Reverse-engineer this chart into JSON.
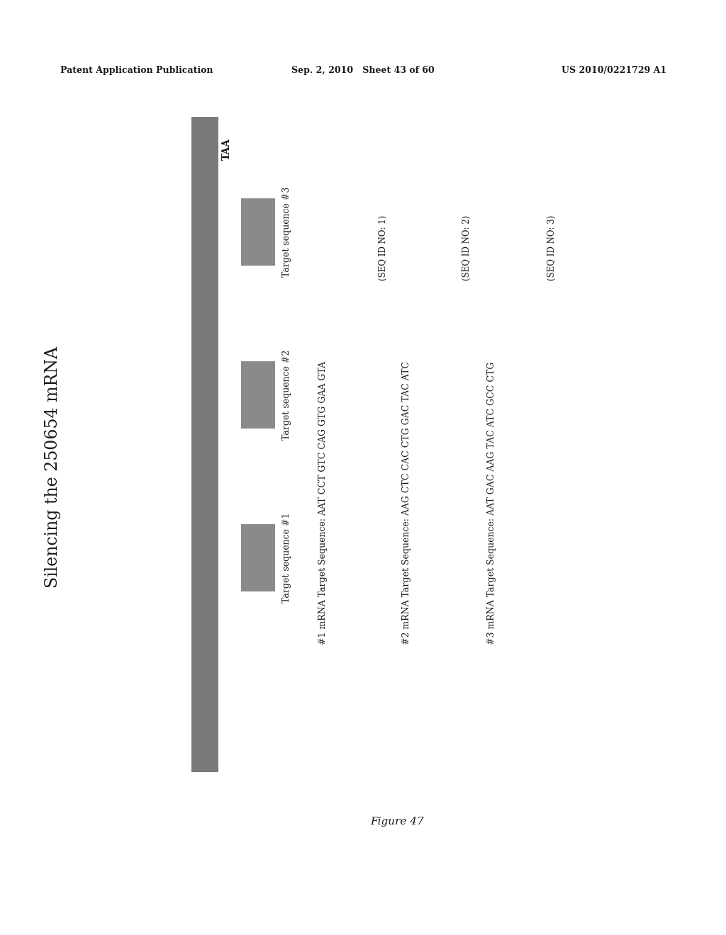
{
  "bg_color": "#ffffff",
  "header_left": "Patent Application Publication",
  "header_mid": "Sep. 2, 2010   Sheet 43 of 60",
  "header_right": "US 2010/0221729 A1",
  "title_rotated": "Silencing the 250654 mRNA",
  "taa_label": "TAA",
  "mrna_bar_color": "#7a7a7a",
  "target_bar_color": "#8a8a8a",
  "seq1_main": "#1 mRNA Target Sequence: AAT CCT GTC CAG GTG GAA GTA",
  "seq1_id": "(SEQ ID NO: 1)",
  "seq2_main": "#2 mRNA Target Sequence: AAG CTC CAC CTG GAC TAC ATC",
  "seq2_id": "(SEQ ID NO: 2)",
  "seq3_main": "#3 mRNA Target Sequence: AAT GAC AAG TAC ATC GCC CTG",
  "seq3_id": "(SEQ ID NO: 3)",
  "ts1_label": "Target sequence #1",
  "ts2_label": "Target sequence #2",
  "ts3_label": "Target sequence #3",
  "figure_label": "Figure 47"
}
